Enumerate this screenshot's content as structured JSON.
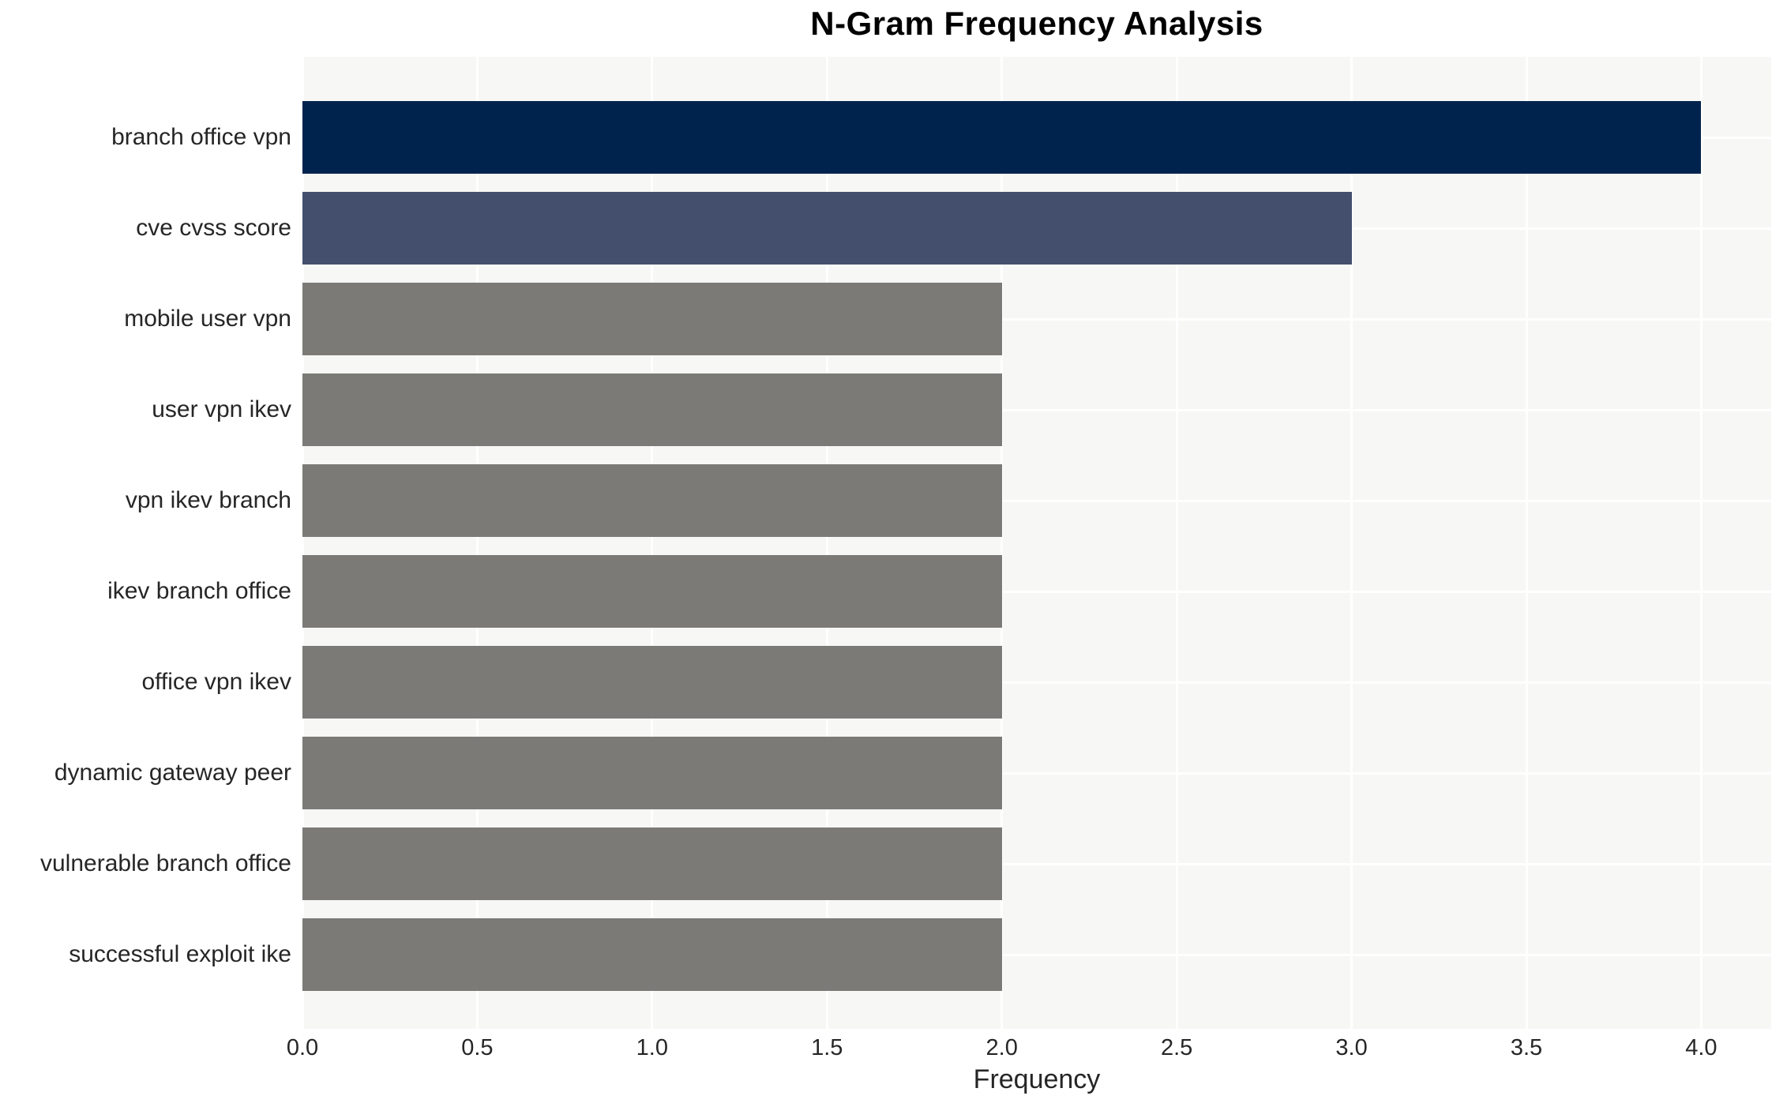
{
  "title": "N-Gram Frequency Analysis",
  "chart_data": {
    "type": "bar",
    "orientation": "horizontal",
    "title": "N-Gram Frequency Analysis",
    "xlabel": "Frequency",
    "ylabel": "",
    "categories": [
      "branch office vpn",
      "cve cvss score",
      "mobile user vpn",
      "user vpn ikev",
      "vpn ikev branch",
      "ikev branch office",
      "office vpn ikev",
      "dynamic gateway peer",
      "vulnerable branch office",
      "successful exploit ike"
    ],
    "values": [
      4,
      3,
      2,
      2,
      2,
      2,
      2,
      2,
      2,
      2
    ],
    "bar_colors": [
      "#00234e",
      "#444f6d",
      "#7b7a77",
      "#7b7a77",
      "#7b7a77",
      "#7b7a77",
      "#7b7a77",
      "#7b7a77",
      "#7b7a77",
      "#7b7a77"
    ],
    "xlim": [
      0,
      4.2
    ],
    "xticks": [
      0.0,
      0.5,
      1.0,
      1.5,
      2.0,
      2.5,
      3.0,
      3.5,
      4.0
    ],
    "xtick_labels": [
      "0.0",
      "0.5",
      "1.0",
      "1.5",
      "2.0",
      "2.5",
      "3.0",
      "3.5",
      "4.0"
    ],
    "grid": true,
    "legend": false,
    "colors": {
      "panel_bg": "#f7f7f5",
      "grid_color": "#ffffff",
      "text_color": "#262626",
      "title_color": "#000000"
    }
  }
}
